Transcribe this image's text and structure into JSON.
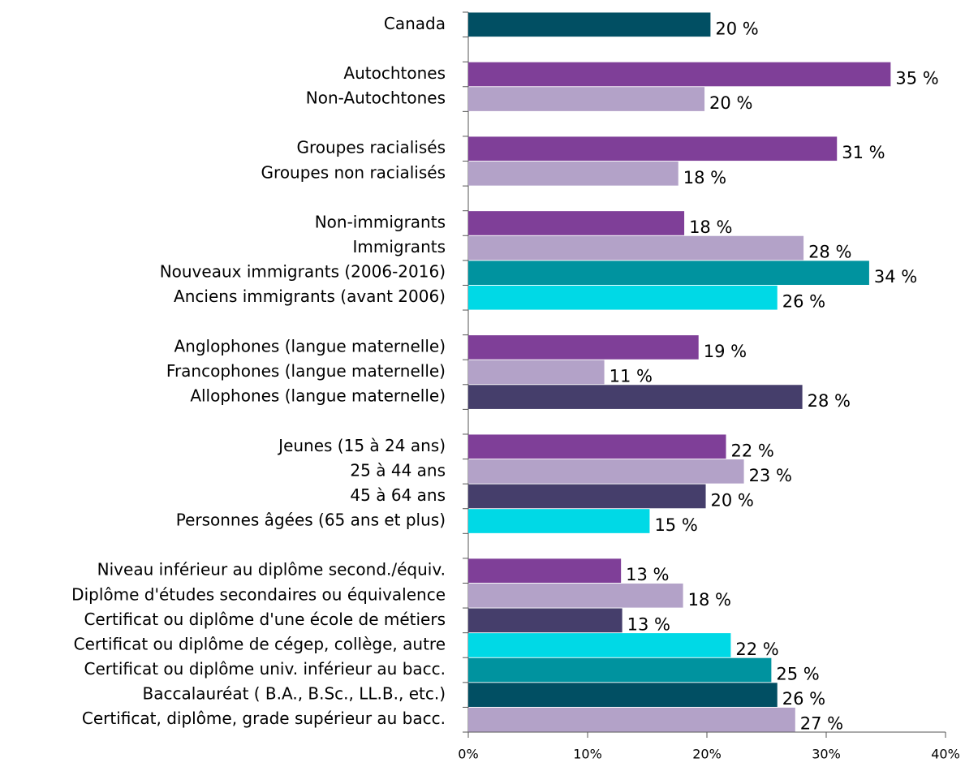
{
  "chart_data": {
    "type": "bar",
    "orientation": "horizontal",
    "categories": [
      "Canada",
      null,
      "Autochtones",
      "Non-Autochtones",
      null,
      "Groupes racialisés",
      "Groupes non racialisés",
      null,
      "Non-immigrants",
      "Immigrants",
      "Nouveaux immigrants (2006-2016)",
      "Anciens immigrants (avant 2006)",
      null,
      "Anglophones (langue maternelle)",
      "Francophones (langue maternelle)",
      "Allophones (langue maternelle)",
      null,
      "Jeunes (15 à 24 ans)",
      "25 à 44 ans",
      "45 à 64 ans",
      "Personnes âgées (65 ans et plus)",
      null,
      "Niveau inférieur au diplôme second./équiv.",
      "Diplôme d'études secondaires ou équivalence",
      "Certificat ou diplôme d'une école de métiers",
      "Certificat ou diplôme de cégep, collège, autre",
      "Certificat ou diplôme univ. inférieur au bacc.",
      "Baccalauréat ( B.A., B.Sc., LL.B., etc.)",
      "Certificat, diplôme, grade supérieur au bacc."
    ],
    "values": [
      20.3,
      null,
      35.4,
      19.8,
      null,
      30.9,
      17.6,
      null,
      18.1,
      28.1,
      33.6,
      25.9,
      null,
      19.3,
      11.4,
      28.0,
      null,
      21.6,
      23.1,
      19.9,
      15.2,
      null,
      12.8,
      18.0,
      12.9,
      22,
      25.4,
      25.9,
      27.4
    ],
    "value_labels": [
      "20 %",
      null,
      "35 %",
      "20 %",
      null,
      "31 %",
      "18 %",
      null,
      "18 %",
      "28 %",
      "34 %",
      "26 %",
      null,
      "19 %",
      "11 %",
      "28 %",
      null,
      "22 %",
      "23 %",
      "20 %",
      "15 %",
      null,
      "13 %",
      "18 %",
      "13 %",
      "22 %",
      "25 %",
      "26 %",
      "27 %"
    ],
    "colors": [
      "#014f63",
      null,
      "#7f3f98",
      "#b3a2c8",
      null,
      "#7f3f98",
      "#b3a2c8",
      null,
      "#7f3f98",
      "#b3a2c8",
      "#00939f",
      "#00d9e6",
      null,
      "#7f3f98",
      "#b3a2c8",
      "#453e6b",
      null,
      "#7f3f98",
      "#b3a2c8",
      "#453e6b",
      "#00d9e6",
      null,
      "#7f3f98",
      "#b3a2c8",
      "#453e6b",
      "#00d9e6",
      "#00939f",
      "#014f63",
      "#b3a2c8"
    ],
    "xlim": [
      0,
      40
    ],
    "xticks": [
      {
        "value": 0,
        "label": "0%"
      },
      {
        "value": 10,
        "label": "10%"
      },
      {
        "value": 20,
        "label": "20%"
      },
      {
        "value": 30,
        "label": "30%"
      },
      {
        "value": 40,
        "label": "40%"
      }
    ]
  }
}
